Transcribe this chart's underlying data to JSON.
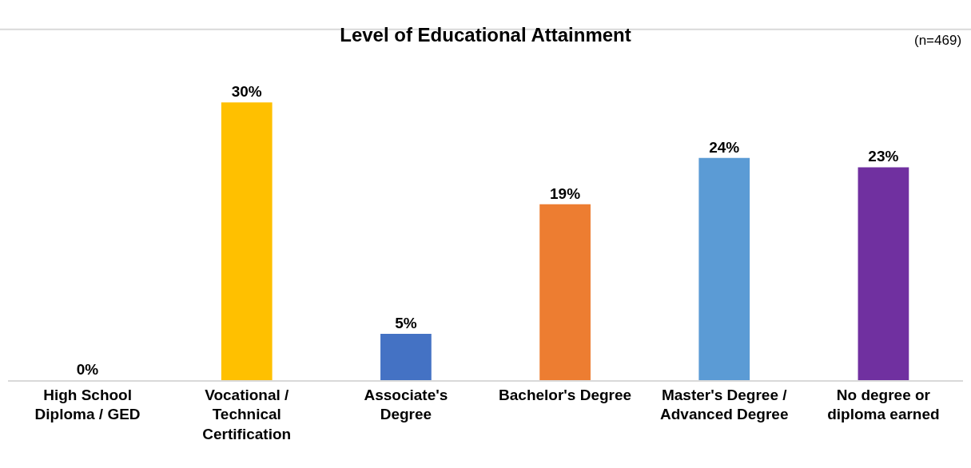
{
  "chart_data": {
    "type": "bar",
    "title": "Level of Educational Attainment",
    "annotations": [
      "(n=469)"
    ],
    "categories": [
      "High School Diploma / GED",
      "Vocational / Technical Certification",
      "Associate's Degree",
      "Bachelor's Degree",
      "Master's Degree / Advanced Degree",
      "No degree or diploma earned"
    ],
    "values": [
      0,
      30,
      5,
      19,
      24,
      23
    ],
    "colors": [
      "#a5a5a5",
      "#ffc000",
      "#4472c4",
      "#ed7d31",
      "#5b9bd5",
      "#7030a0"
    ],
    "value_labels": [
      "0%",
      "30%",
      "5%",
      "19%",
      "24%",
      "23%"
    ]
  }
}
